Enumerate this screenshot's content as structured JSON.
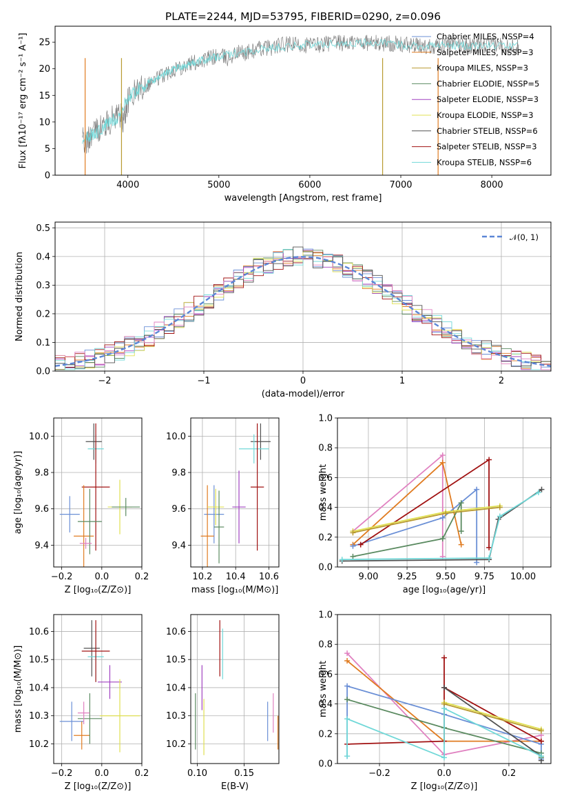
{
  "colors": {
    "blue": "#6a8fd6",
    "orange": "#e07b20",
    "olive": "#b89a30",
    "green": "#5a8a60",
    "purple": "#a040c0",
    "yellow": "#e0e050",
    "gray": "#707070",
    "red": "#a01010",
    "cyan": "#70d8d8",
    "pink": "#e080c0"
  },
  "chart_data": [
    {
      "id": "spectrum",
      "type": "line",
      "title": "PLATE=2244, MJD=53795, FIBERID=0290, z=0.096",
      "xlabel": "wavelength [Angstrom, rest frame]",
      "ylabel": "Flux [fλ10⁻¹⁷ erg cm⁻² s⁻¹ A⁻¹]",
      "xlim": [
        3200,
        8650
      ],
      "ylim": [
        0,
        28
      ],
      "xticks": [
        4000,
        5000,
        6000,
        7000,
        8000
      ],
      "yticks": [
        0,
        5,
        10,
        15,
        20,
        25
      ],
      "legend_position": "top-right",
      "legend": [
        {
          "label": "Chabrier MILES, NSSP=4",
          "color": "#6a8fd6"
        },
        {
          "label": "Salpeter MILES, NSSP=3",
          "color": "#e07b20"
        },
        {
          "label": "Kroupa MILES, NSSP=3",
          "color": "#b89a30"
        },
        {
          "label": "Chabrier ELODIE, NSSP=5",
          "color": "#5a8a60"
        },
        {
          "label": "Salpeter ELODIE, NSSP=3",
          "color": "#a040c0"
        },
        {
          "label": "Kroupa ELODIE, NSSP=3",
          "color": "#e0e050"
        },
        {
          "label": "Chabrier STELIB, NSSP=6",
          "color": "#505050"
        },
        {
          "label": "Salpeter STELIB, NSSP=3",
          "color": "#a01010"
        },
        {
          "label": "Kroupa STELIB, NSSP=6",
          "color": "#70d8d8"
        }
      ],
      "series": [
        {
          "name": "observed spectrum",
          "color": "#808080",
          "x": [
            3500,
            3550,
            3600,
            3700,
            3800,
            3900,
            3950,
            4000,
            4100,
            4200,
            4300,
            4400,
            4500,
            4600,
            4700,
            4800,
            4900,
            5000,
            5100,
            5200,
            5300,
            5400,
            5500,
            5600,
            5700,
            5800,
            5900,
            6000,
            6100,
            6200,
            6300,
            6400,
            6500,
            6600,
            6700,
            6800,
            6900,
            7000,
            7100,
            7200,
            7300,
            7400,
            7500,
            7600,
            7700,
            7800,
            7900,
            8000,
            8100,
            8200,
            8300
          ],
          "y": [
            7,
            6,
            8,
            9,
            10,
            12,
            10,
            14,
            16,
            17,
            18,
            19,
            20,
            20.5,
            21,
            21.5,
            22,
            22.5,
            22,
            23,
            23,
            23.5,
            24,
            24,
            24.5,
            24.5,
            24.5,
            24.5,
            24.5,
            24.8,
            24.8,
            24.8,
            25,
            25,
            24.8,
            24.8,
            24.8,
            24.5,
            24.5,
            24.2,
            24.2,
            24.5,
            24.5,
            24.5,
            24.5,
            24.2,
            24.2,
            24.5,
            24.5,
            24.2,
            24.2
          ]
        },
        {
          "name": "model fit",
          "color": "#70d8d8",
          "x": [
            3500,
            3600,
            3700,
            3800,
            3900,
            4000,
            4100,
            4200,
            4300,
            4400,
            4500,
            4600,
            4700,
            4800,
            4900,
            5000,
            5200,
            5400,
            5600,
            5800,
            6000,
            6200,
            6400,
            6600,
            6800,
            7000,
            7200,
            7400,
            7600,
            7800,
            8000,
            8300
          ],
          "y": [
            7,
            7.5,
            8.5,
            10,
            11,
            14.5,
            16,
            17,
            18,
            19,
            20,
            20.5,
            21,
            21.5,
            22,
            22.2,
            23,
            23.5,
            24,
            24.3,
            24.5,
            24.7,
            24.8,
            24.9,
            24.8,
            24.5,
            24.3,
            24.4,
            24.4,
            24.3,
            24.4,
            24.2
          ]
        }
      ]
    },
    {
      "id": "residuals",
      "type": "line",
      "xlabel": "(data-model)/error",
      "ylabel": "Normed distribution",
      "xlim": [
        -2.5,
        2.5
      ],
      "ylim": [
        0,
        0.52
      ],
      "xticks": [
        -2,
        -1,
        0,
        1,
        2
      ],
      "yticks": [
        0.0,
        0.1,
        0.2,
        0.3,
        0.4,
        0.5
      ],
      "grid": true,
      "legend_position": "top-right",
      "legend": [
        {
          "label": "𝒩(0, 1)",
          "color": "#5b86d6"
        }
      ],
      "series": [
        {
          "name": "𝒩(0, 1)",
          "color": "#5b86d6",
          "function": "normal",
          "mean": 0,
          "sd": 1
        }
      ]
    },
    {
      "id": "age-vs-Z",
      "type": "scatter",
      "xlabel": "Z [log₁₀(Z/Z⊙)]",
      "ylabel": "age  [log₁₀(age/yr)]",
      "xlim": [
        -0.24,
        0.2
      ],
      "ylim": [
        9.28,
        10.1
      ],
      "xticks": [
        -0.2,
        0.0,
        0.2
      ],
      "yticks": [
        9.4,
        9.6,
        9.8,
        10.0
      ],
      "grid": true,
      "points": [
        {
          "x": -0.04,
          "y": 9.97,
          "xerr": 0.04,
          "yerr": 0.1,
          "color": "#505050"
        },
        {
          "x": -0.03,
          "y": 9.93,
          "xerr": 0.04,
          "yerr": 0.08,
          "color": "#70d8d8"
        },
        {
          "x": -0.03,
          "y": 9.72,
          "xerr": 0.07,
          "yerr": 0.35,
          "color": "#a01010"
        },
        {
          "x": -0.16,
          "y": 9.57,
          "xerr": 0.05,
          "yerr": 0.1,
          "color": "#6a8fd6"
        },
        {
          "x": -0.09,
          "y": 9.45,
          "xerr": 0.05,
          "yerr": 0.28,
          "color": "#e07b20"
        },
        {
          "x": -0.06,
          "y": 9.53,
          "xerr": 0.06,
          "yerr": 0.18,
          "color": "#5a8a60"
        },
        {
          "x": -0.08,
          "y": 9.41,
          "xerr": 0.03,
          "yerr": 0.03,
          "color": "#e080c0"
        },
        {
          "x": 0.09,
          "y": 9.61,
          "xerr": 0.06,
          "yerr": 0.15,
          "color": "#e0e050"
        },
        {
          "x": 0.12,
          "y": 9.61,
          "xerr": 0.07,
          "yerr": 0.05,
          "color": "#5a8a60"
        }
      ]
    },
    {
      "id": "age-vs-mass",
      "type": "scatter",
      "xlabel": "mass [log₁₀(M/M⊙)]",
      "ylabel": "",
      "xlim": [
        10.13,
        10.66
      ],
      "ylim": [
        9.28,
        10.1
      ],
      "xticks": [
        10.2,
        10.4,
        10.6
      ],
      "yticks": [
        9.4,
        9.6,
        9.8,
        10.0
      ],
      "grid": true,
      "points": [
        {
          "x": 10.55,
          "y": 9.97,
          "xerr": 0.06,
          "yerr": 0.1,
          "color": "#505050"
        },
        {
          "x": 10.51,
          "y": 9.93,
          "xerr": 0.09,
          "yerr": 0.08,
          "color": "#70d8d8"
        },
        {
          "x": 10.53,
          "y": 9.72,
          "xerr": 0.04,
          "yerr": 0.35,
          "color": "#a01010"
        },
        {
          "x": 10.27,
          "y": 9.57,
          "xerr": 0.06,
          "yerr": 0.16,
          "color": "#6a8fd6"
        },
        {
          "x": 10.23,
          "y": 9.45,
          "xerr": 0.04,
          "yerr": 0.28,
          "color": "#e07b20"
        },
        {
          "x": 10.28,
          "y": 9.61,
          "xerr": 0.05,
          "yerr": 0.1,
          "color": "#e0e050"
        },
        {
          "x": 10.42,
          "y": 9.61,
          "xerr": 0.04,
          "yerr": 0.2,
          "color": "#a040c0"
        },
        {
          "x": 10.3,
          "y": 9.5,
          "xerr": 0.03,
          "yerr": 0.2,
          "color": "#5a8a60"
        }
      ]
    },
    {
      "id": "weight-vs-age",
      "type": "line",
      "xlabel": "age  [log₁₀(age/yr)]",
      "ylabel": "mass weight",
      "xlim": [
        8.8,
        10.18
      ],
      "ylim": [
        0,
        1
      ],
      "xticks": [
        9.0,
        9.25,
        9.5,
        9.75,
        10.0
      ],
      "yticks": [
        0.0,
        0.2,
        0.4,
        0.6,
        0.8,
        1.0
      ],
      "grid": true,
      "series": [
        {
          "color": "#e080c0",
          "x": [
            8.9,
            9.48,
            9.48
          ],
          "y": [
            0.24,
            0.75,
            0.07
          ]
        },
        {
          "color": "#e07b20",
          "x": [
            8.9,
            9.48,
            9.6
          ],
          "y": [
            0.15,
            0.7,
            0.15
          ]
        },
        {
          "color": "#6a8fd6",
          "x": [
            8.9,
            9.48,
            9.7,
            9.7
          ],
          "y": [
            0.14,
            0.33,
            0.52,
            0.03
          ]
        },
        {
          "color": "#a01010",
          "x": [
            8.95,
            9.78,
            9.78
          ],
          "y": [
            0.15,
            0.72,
            0.13
          ]
        },
        {
          "color": "#5a8a60",
          "x": [
            8.9,
            9.48,
            9.6,
            9.6
          ],
          "y": [
            0.07,
            0.19,
            0.43,
            0.24
          ]
        },
        {
          "color": "#e0e050",
          "x": [
            8.9,
            9.5,
            9.85
          ],
          "y": [
            0.24,
            0.37,
            0.41
          ]
        },
        {
          "color": "#b89a30",
          "x": [
            8.9,
            9.5,
            9.85
          ],
          "y": [
            0.23,
            0.36,
            0.4
          ]
        },
        {
          "color": "#505050",
          "x": [
            8.83,
            9.78,
            9.84,
            10.12
          ],
          "y": [
            0.04,
            0.05,
            0.32,
            0.52
          ]
        },
        {
          "color": "#70d8d8",
          "x": [
            8.83,
            9.78,
            9.85,
            10.1
          ],
          "y": [
            0.05,
            0.06,
            0.34,
            0.5
          ]
        }
      ]
    },
    {
      "id": "mass-vs-Z",
      "type": "scatter",
      "xlabel": "Z [log₁₀(Z/Z⊙)]",
      "ylabel": "mass [log₁₀(M/M⊙)]",
      "xlim": [
        -0.24,
        0.2
      ],
      "ylim": [
        10.13,
        10.66
      ],
      "xticks": [
        -0.2,
        0.0,
        0.2
      ],
      "yticks": [
        10.2,
        10.3,
        10.4,
        10.5,
        10.6
      ],
      "grid": true,
      "points": [
        {
          "x": -0.05,
          "y": 10.54,
          "xerr": 0.04,
          "yerr": 0.1,
          "color": "#505050"
        },
        {
          "x": -0.03,
          "y": 10.51,
          "xerr": 0.04,
          "yerr": 0.09,
          "color": "#70d8d8"
        },
        {
          "x": -0.03,
          "y": 10.53,
          "xerr": 0.07,
          "yerr": 0.11,
          "color": "#a01010"
        },
        {
          "x": 0.04,
          "y": 10.42,
          "xerr": 0.06,
          "yerr": 0.06,
          "color": "#a040c0"
        },
        {
          "x": -0.15,
          "y": 10.28,
          "xerr": 0.06,
          "yerr": 0.07,
          "color": "#6a8fd6"
        },
        {
          "x": -0.1,
          "y": 10.23,
          "xerr": 0.04,
          "yerr": 0.05,
          "color": "#e07b20"
        },
        {
          "x": -0.06,
          "y": 10.29,
          "xerr": 0.06,
          "yerr": 0.09,
          "color": "#5a8a60"
        },
        {
          "x": -0.09,
          "y": 10.31,
          "xerr": 0.03,
          "yerr": 0.04,
          "color": "#e080c0"
        },
        {
          "x": 0.09,
          "y": 10.3,
          "xerr": 0.1,
          "yerr": 0.13,
          "color": "#e0e050"
        }
      ]
    },
    {
      "id": "mass-vs-ebv",
      "type": "scatter",
      "xlabel": "E(B-V)",
      "ylabel": "",
      "xlim": [
        0.093,
        0.187
      ],
      "ylim": [
        10.13,
        10.66
      ],
      "xticks": [
        0.1,
        0.15
      ],
      "yticks": [
        10.2,
        10.3,
        10.4,
        10.5,
        10.6
      ],
      "grid": true,
      "points": [
        {
          "x": 0.124,
          "y": 10.54,
          "yerr": 0.1,
          "color": "#a01010"
        },
        {
          "x": 0.127,
          "y": 10.52,
          "yerr": 0.09,
          "color": "#70d8d8"
        },
        {
          "x": 0.105,
          "y": 10.4,
          "yerr": 0.08,
          "color": "#a040c0"
        },
        {
          "x": 0.107,
          "y": 10.26,
          "yerr": 0.1,
          "color": "#e0e050"
        },
        {
          "x": 0.098,
          "y": 10.28,
          "yerr": 0.1,
          "color": "#5a8a60"
        },
        {
          "x": 0.175,
          "y": 10.28,
          "yerr": 0.07,
          "color": "#6a8fd6"
        },
        {
          "x": 0.181,
          "y": 10.31,
          "yerr": 0.07,
          "color": "#e080c0"
        },
        {
          "x": 0.186,
          "y": 10.24,
          "yerr": 0.06,
          "color": "#e07b20"
        }
      ]
    },
    {
      "id": "weight-vs-Z",
      "type": "line",
      "xlabel": "Z [log₁₀(Z/Z⊙)]",
      "ylabel": "mass weight",
      "xlim": [
        -0.33,
        0.33
      ],
      "ylim": [
        0,
        1
      ],
      "xticks": [
        -0.2,
        0.0,
        0.2
      ],
      "yticks": [
        0.0,
        0.2,
        0.4,
        0.6,
        0.8,
        1.0
      ],
      "grid": true,
      "series": [
        {
          "color": "#e080c0",
          "x": [
            -0.3,
            0.0,
            0.3
          ],
          "y": [
            0.74,
            0.06,
            0.19
          ]
        },
        {
          "color": "#e07b20",
          "x": [
            -0.3,
            0.0,
            0.3
          ],
          "y": [
            0.69,
            0.15,
            0.15
          ]
        },
        {
          "color": "#6a8fd6",
          "x": [
            -0.3,
            -0.3,
            0.0,
            0.3,
            0.3
          ],
          "y": [
            0.05,
            0.52,
            0.33,
            0.13,
            0.03
          ]
        },
        {
          "color": "#a01010",
          "x": [
            -0.3,
            0.0,
            0.0,
            0.0,
            0.3
          ],
          "y": [
            0.13,
            0.15,
            0.71,
            0.51,
            0.15
          ]
        },
        {
          "color": "#5a8a60",
          "x": [
            -0.3,
            0.0,
            0.3,
            0.3
          ],
          "y": [
            0.43,
            0.24,
            0.07,
            0.04
          ]
        },
        {
          "color": "#505050",
          "x": [
            0.0,
            0.3,
            0.3
          ],
          "y": [
            0.51,
            0.05,
            0.02
          ]
        },
        {
          "color": "#e0e050",
          "x": [
            0.0,
            0.3
          ],
          "y": [
            0.41,
            0.23
          ]
        },
        {
          "color": "#b89a30",
          "x": [
            0.0,
            0.3
          ],
          "y": [
            0.4,
            0.22
          ]
        },
        {
          "color": "#70d8d8",
          "x": [
            -0.3,
            -0.3,
            0.0,
            0.0,
            0.3
          ],
          "y": [
            0.05,
            0.3,
            0.04,
            0.37,
            0.05
          ]
        }
      ]
    }
  ]
}
